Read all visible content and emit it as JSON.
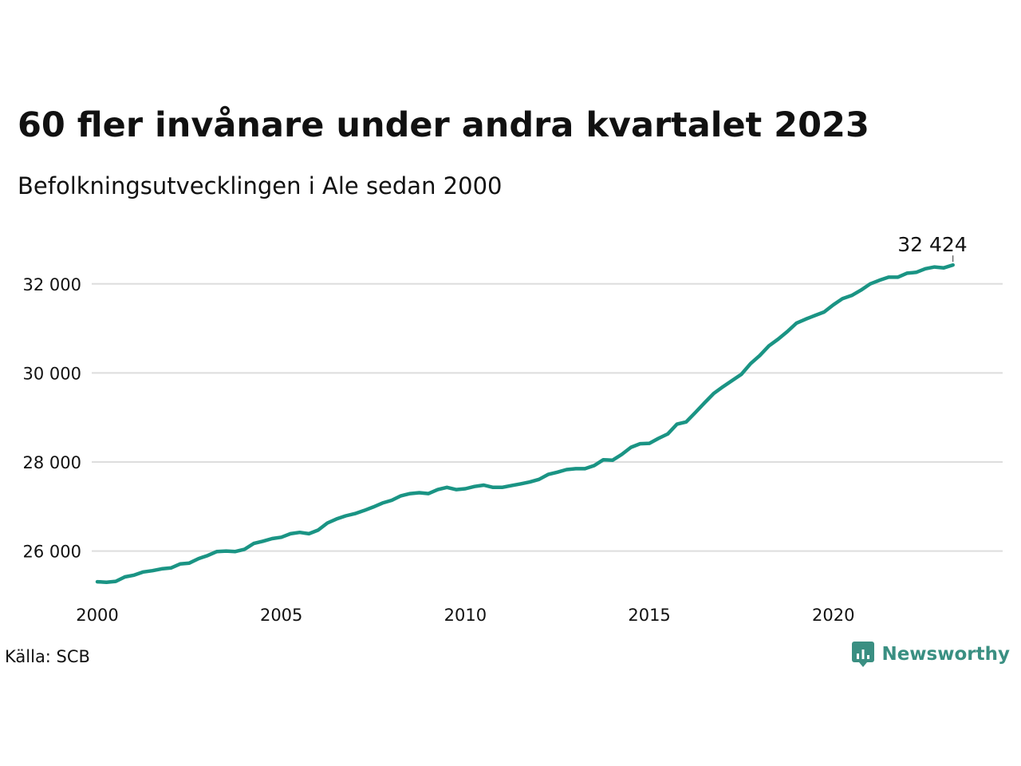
{
  "title": "60 fler invånare under andra kvartalet 2023",
  "subtitle": "Befolkningsutvecklingen i Ale sedan 2000",
  "source": "Källa: SCB",
  "brand": {
    "name": "Newsworthy",
    "logo_icon": "newsworthy-logo-icon",
    "color": "#3a8f82"
  },
  "colors": {
    "line": "#1a9484",
    "grid": "#dddddd"
  },
  "chart_data": {
    "type": "line",
    "title": "60 fler invånare under andra kvartalet 2023",
    "subtitle": "Befolkningsutvecklingen i Ale sedan 2000",
    "xlabel": "",
    "ylabel": "",
    "grid": true,
    "xlim": [
      2000,
      2024.6
    ],
    "ylim": [
      24900,
      33000
    ],
    "x_ticks": [
      2000,
      2005,
      2010,
      2015,
      2020
    ],
    "x_tick_labels": [
      "2000",
      "2005",
      "2010",
      "2015",
      "2020"
    ],
    "y_ticks": [
      26000,
      28000,
      30000,
      32000
    ],
    "y_tick_labels": [
      "26 000",
      "28 000",
      "30 000",
      "32 000"
    ],
    "last_value_label": "32 424",
    "series": [
      {
        "x": [
          2000.0,
          2000.25,
          2000.5,
          2000.75,
          2001.0,
          2001.25,
          2001.5,
          2001.75,
          2002.0,
          2002.25,
          2002.5,
          2002.75,
          2003.0,
          2003.25,
          2003.5,
          2003.75,
          2004.0,
          2004.25,
          2004.5,
          2004.75,
          2005.0,
          2005.25,
          2005.5,
          2005.75,
          2006.0,
          2006.25,
          2006.5,
          2006.75,
          2007.0,
          2007.25,
          2007.5,
          2007.75,
          2008.0,
          2008.25,
          2008.5,
          2008.75,
          2009.0,
          2009.25,
          2009.5,
          2009.75,
          2010.0,
          2010.25,
          2010.5,
          2010.75,
          2011.0,
          2011.25,
          2011.5,
          2011.75,
          2012.0,
          2012.25,
          2012.5,
          2012.75,
          2013.0,
          2013.25,
          2013.5,
          2013.75,
          2014.0,
          2014.25,
          2014.5,
          2014.75,
          2015.0,
          2015.25,
          2015.5,
          2015.75,
          2016.0,
          2016.25,
          2016.5,
          2016.75,
          2017.0,
          2017.25,
          2017.5,
          2017.75,
          2018.0,
          2018.25,
          2018.5,
          2018.75,
          2019.0,
          2019.25,
          2019.5,
          2019.75,
          2020.0,
          2020.25,
          2020.5,
          2020.75,
          2021.0,
          2021.25,
          2021.5,
          2021.75,
          2022.0,
          2022.25,
          2022.5,
          2022.75,
          2023.0,
          2023.25
        ],
        "values": [
          25310,
          25300,
          25320,
          25420,
          25460,
          25530,
          25560,
          25600,
          25620,
          25710,
          25730,
          25830,
          25900,
          25990,
          26000,
          25990,
          26040,
          26170,
          26220,
          26280,
          26310,
          26390,
          26420,
          26390,
          26470,
          26630,
          26720,
          26790,
          26840,
          26910,
          26990,
          27080,
          27140,
          27240,
          27290,
          27310,
          27290,
          27380,
          27430,
          27380,
          27400,
          27450,
          27480,
          27430,
          27430,
          27470,
          27510,
          27550,
          27610,
          27720,
          27770,
          27830,
          27850,
          27850,
          27920,
          28050,
          28040,
          28170,
          28330,
          28410,
          28420,
          28530,
          28630,
          28850,
          28900,
          29110,
          29330,
          29540,
          29690,
          29830,
          29970,
          30210,
          30390,
          30610,
          30760,
          30930,
          31120,
          31210,
          31290,
          31370,
          31530,
          31670,
          31740,
          31860,
          32000,
          32080,
          32150,
          32150,
          32240,
          32260,
          32340,
          32380,
          32360,
          32424
        ]
      }
    ]
  }
}
